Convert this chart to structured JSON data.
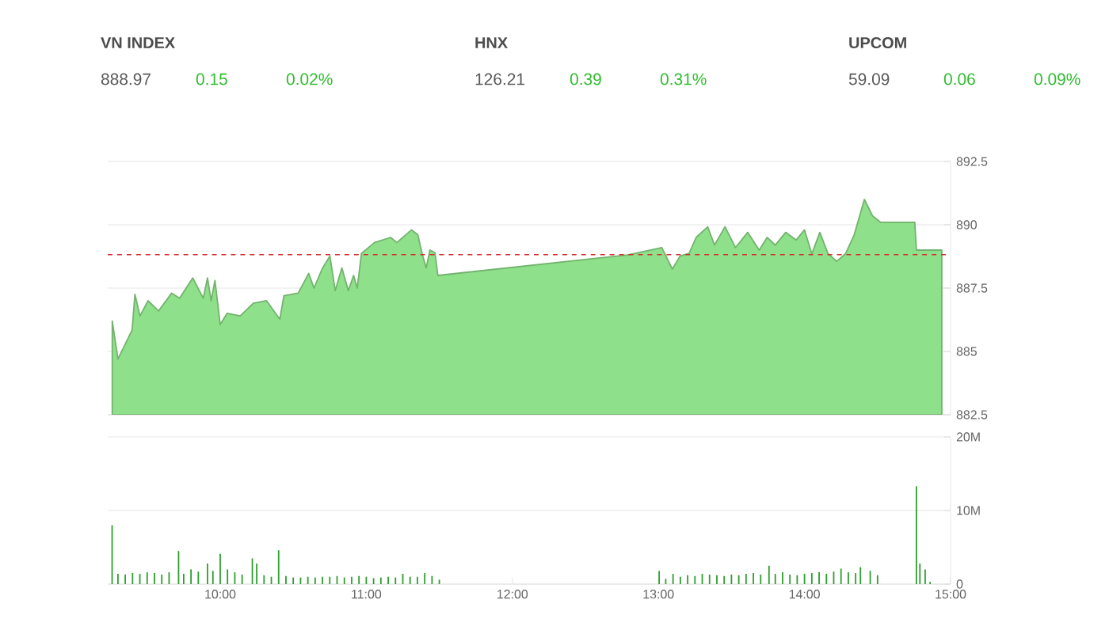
{
  "chart_data": [
    {
      "type": "other",
      "categories": [
        "VN INDEX",
        "HNX",
        "UPCOM"
      ],
      "values": [
        888.97,
        126.21,
        59.09
      ],
      "data_labels": true,
      "color": "#2ebd2e",
      "annotations": [
        "0.15",
        "0.02%",
        "0.39",
        "0.31%",
        "0.06",
        "0.09%"
      ]
    },
    {
      "type": "area",
      "xlim": [
        9.23,
        15
      ],
      "ylim": [
        882.5,
        892.5
      ],
      "yticks": [
        882.5,
        885,
        887.5,
        890,
        892.5
      ],
      "grid": "y",
      "tick_labels": "y",
      "ref_lines": [
        {
          "axis": "y",
          "value": 888.82,
          "color": "#d32f2f",
          "line_style": "dashed"
        }
      ],
      "series": [
        {
          "color": "#8fe08a",
          "x": [
            9.261,
            9.3,
            9.397,
            9.416,
            9.451,
            9.506,
            9.578,
            9.668,
            9.722,
            9.812,
            9.884,
            9.913,
            9.938,
            9.964,
            10.0,
            10.047,
            10.137,
            10.227,
            10.317,
            10.408,
            10.436,
            10.534,
            10.606,
            10.642,
            10.697,
            10.751,
            10.787,
            10.833,
            10.877,
            10.913,
            10.938,
            10.967,
            11.057,
            11.166,
            11.21,
            11.31,
            11.353,
            11.382,
            11.41,
            11.436,
            11.47,
            11.49,
            12.789,
            13.023,
            13.095,
            13.149,
            13.21,
            13.258,
            13.337,
            13.384,
            13.456,
            13.528,
            13.611,
            13.69,
            13.744,
            13.8,
            13.871,
            13.943,
            14.0,
            14.05,
            14.105,
            14.16,
            14.22,
            14.28,
            14.34,
            14.41,
            14.466,
            14.52,
            14.755,
            14.766,
            14.94
          ],
          "values": [
            886.2,
            884.7,
            885.85,
            887.25,
            886.4,
            887.0,
            886.6,
            887.3,
            887.1,
            887.9,
            887.1,
            887.9,
            887.0,
            887.8,
            886.06,
            886.5,
            886.4,
            886.9,
            887.0,
            886.27,
            887.2,
            887.3,
            888.08,
            887.5,
            888.25,
            888.77,
            887.4,
            888.3,
            887.4,
            888.0,
            887.5,
            888.87,
            889.3,
            889.5,
            889.3,
            889.8,
            889.6,
            888.87,
            888.3,
            889.0,
            888.9,
            888.0,
            888.81,
            889.1,
            888.25,
            888.77,
            888.87,
            889.5,
            889.92,
            889.2,
            889.92,
            889.1,
            889.7,
            889.0,
            889.5,
            889.2,
            889.7,
            889.4,
            889.8,
            888.85,
            889.7,
            888.87,
            888.56,
            888.85,
            889.6,
            891.0,
            890.35,
            890.1,
            890.1,
            889.0,
            889.0
          ]
        }
      ]
    },
    {
      "type": "bar",
      "xlim": [
        9.23,
        15
      ],
      "ylim": [
        0,
        20
      ],
      "yticks": [
        {
          "value": 0,
          "label": "0"
        },
        {
          "value": 10,
          "label": "10M"
        },
        {
          "value": 20,
          "label": "20M"
        }
      ],
      "xticks": [
        {
          "value": 10,
          "label": "10:00"
        },
        {
          "value": 11,
          "label": "11:00"
        },
        {
          "value": 12,
          "label": "12:00"
        },
        {
          "value": 13,
          "label": "13:00"
        },
        {
          "value": 14,
          "label": "14:00"
        },
        {
          "value": 15,
          "label": "15:00"
        }
      ],
      "grid": "y",
      "series": [
        {
          "color": "#2e9e2e",
          "x": [
            9.26,
            9.3,
            9.35,
            9.4,
            9.45,
            9.5,
            9.55,
            9.6,
            9.65,
            9.715,
            9.75,
            9.8,
            9.85,
            9.913,
            9.95,
            10.0,
            10.05,
            10.1,
            10.15,
            10.22,
            10.25,
            10.3,
            10.35,
            10.4,
            10.45,
            10.5,
            10.55,
            10.6,
            10.65,
            10.7,
            10.75,
            10.8,
            10.85,
            10.9,
            10.95,
            11.0,
            11.05,
            11.1,
            11.15,
            11.2,
            11.25,
            11.3,
            11.35,
            11.4,
            11.45,
            11.5,
            13.005,
            13.05,
            13.1,
            13.15,
            13.2,
            13.25,
            13.3,
            13.35,
            13.4,
            13.45,
            13.5,
            13.55,
            13.6,
            13.65,
            13.7,
            13.757,
            13.8,
            13.85,
            13.9,
            13.95,
            14.0,
            14.05,
            14.1,
            14.15,
            14.2,
            14.25,
            14.3,
            14.35,
            14.383,
            14.45,
            14.5,
            14.766,
            14.79,
            14.826,
            14.86
          ],
          "values": [
            8.0,
            1.4,
            1.3,
            1.5,
            1.4,
            1.6,
            1.5,
            1.3,
            1.6,
            4.5,
            1.4,
            2.0,
            1.7,
            2.8,
            1.8,
            4.1,
            2.0,
            1.6,
            1.3,
            3.5,
            2.8,
            1.2,
            1.0,
            4.6,
            1.1,
            0.9,
            0.9,
            1.0,
            0.9,
            1.0,
            1.0,
            1.1,
            0.9,
            1.0,
            1.1,
            1.0,
            0.8,
            0.9,
            1.0,
            0.9,
            1.4,
            1.0,
            1.0,
            1.5,
            1.1,
            0.6,
            1.8,
            0.7,
            1.4,
            1.0,
            1.2,
            1.1,
            1.4,
            1.3,
            1.2,
            1.1,
            1.3,
            1.2,
            1.4,
            1.5,
            1.3,
            2.5,
            1.4,
            1.6,
            1.3,
            1.2,
            1.4,
            1.5,
            1.6,
            1.4,
            1.7,
            2.1,
            1.6,
            1.5,
            2.3,
            1.8,
            1.2,
            13.3,
            2.8,
            2.0,
            0.3
          ]
        }
      ]
    }
  ]
}
